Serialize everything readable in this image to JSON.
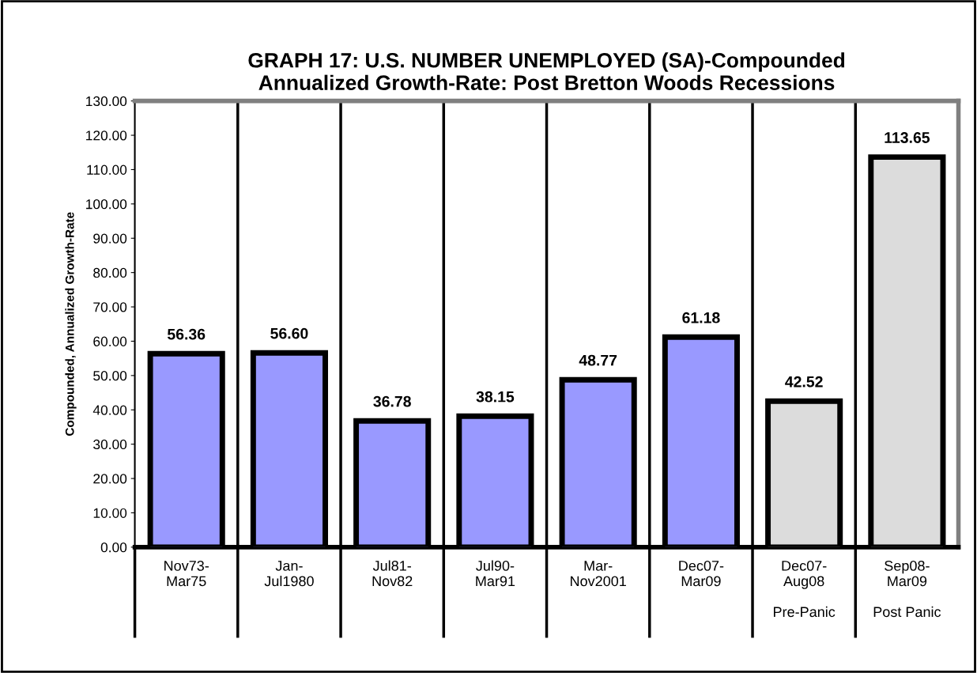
{
  "chart_data": {
    "type": "bar",
    "title": "GRAPH 17: U.S. NUMBER UNEMPLOYED (SA)-Compounded\nAnnualized Growth-Rate: Post Bretton Woods Recessions",
    "ylabel": "Compounded, Annualized Growth-Rate",
    "categories": [
      "Nov73-\nMar75",
      "Jan-\nJul1980",
      "Jul81-\nNov82",
      "Jul90-\nMar91",
      "Mar-\nNov2001",
      "Dec07-\nMar09",
      "Dec07-\nAug08\n\nPre-Panic",
      "Sep08-\nMar09\n\nPost Panic"
    ],
    "values": [
      56.36,
      56.6,
      36.78,
      38.15,
      48.77,
      61.18,
      42.52,
      113.65
    ],
    "value_labels": [
      "56.36",
      "56.60",
      "36.78",
      "38.15",
      "48.77",
      "61.18",
      "42.52",
      "113.65"
    ],
    "colors": [
      "#9999ff",
      "#9999ff",
      "#9999ff",
      "#9999ff",
      "#9999ff",
      "#9999ff",
      "#dcdcdc",
      "#dcdcdc"
    ],
    "ylim": [
      0,
      130
    ],
    "yticks": [
      {
        "value": 0,
        "label": "0.00"
      },
      {
        "value": 10,
        "label": "10.00"
      },
      {
        "value": 20,
        "label": "20.00"
      },
      {
        "value": 30,
        "label": "30.00"
      },
      {
        "value": 40,
        "label": "40.00"
      },
      {
        "value": 50,
        "label": "50.00"
      },
      {
        "value": 60,
        "label": "60.00"
      },
      {
        "value": 70,
        "label": "70.00"
      },
      {
        "value": 80,
        "label": "80.00"
      },
      {
        "value": 90,
        "label": "90.00"
      },
      {
        "value": 100,
        "label": "100.00"
      },
      {
        "value": 110,
        "label": "110.00"
      },
      {
        "value": 120,
        "label": "120.00"
      },
      {
        "value": 130,
        "label": "130.00"
      }
    ],
    "grid": "x"
  }
}
